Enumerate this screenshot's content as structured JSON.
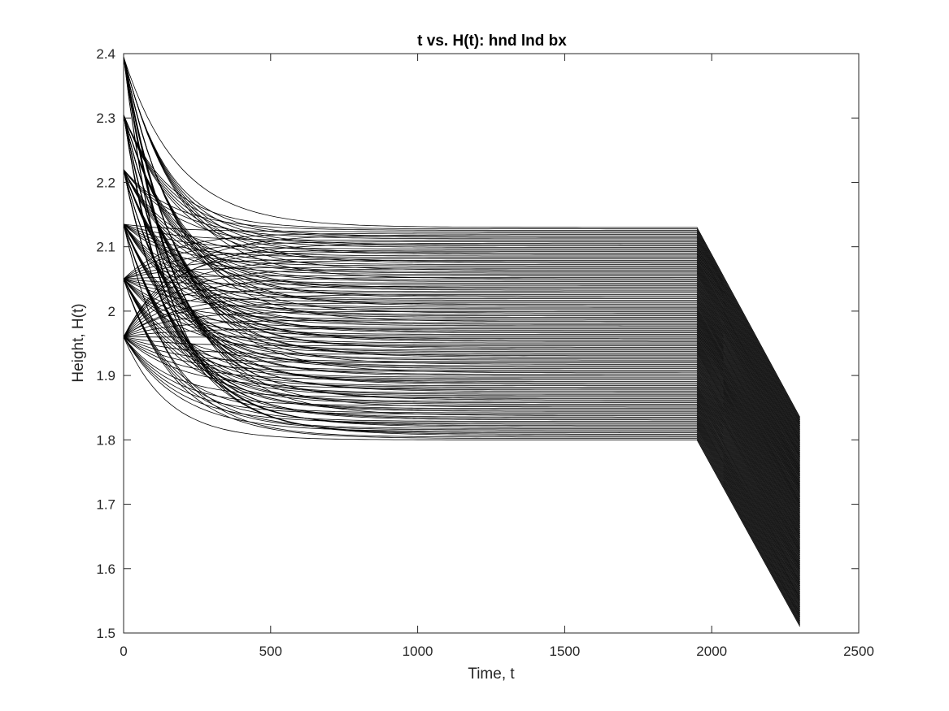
{
  "chart_data": {
    "type": "line",
    "title": "t vs. H(t): hnd lnd bx",
    "xlabel": "Time, t",
    "ylabel": "Height, H(t)",
    "xlim": [
      0,
      2500
    ],
    "ylim": [
      1.5,
      2.4
    ],
    "xticks": [
      0,
      500,
      1000,
      1500,
      2000,
      2500
    ],
    "yticks": [
      1.5,
      1.6,
      1.7,
      1.8,
      1.9,
      2.0,
      2.1,
      2.2,
      2.3,
      2.4
    ],
    "xtick_labels": [
      "0",
      "500",
      "1000",
      "1500",
      "2000",
      "2500"
    ],
    "ytick_labels": [
      "1.5",
      "1.6",
      "1.7",
      "1.8",
      "1.9",
      "2",
      "2.1",
      "2.2",
      "2.3",
      "2.4"
    ],
    "grid": false,
    "legend": "none",
    "line_color": "#000000",
    "plateau_end_t": 1950,
    "final_t": 2300,
    "initial_heights": [
      1.96,
      2.05,
      2.135,
      2.22,
      2.305,
      2.395
    ],
    "plateau_range": [
      1.8,
      2.13
    ],
    "final_range": [
      1.51,
      1.835
    ],
    "series_count": 150,
    "series_note": "family of decaying curves: each starts at one of the initial heights, relaxes to a plateau value between 1.80 and 2.13 by t≈700, stays flat until t=1950, then drops linearly to a value between 1.51 and 1.835 at t=2300"
  }
}
